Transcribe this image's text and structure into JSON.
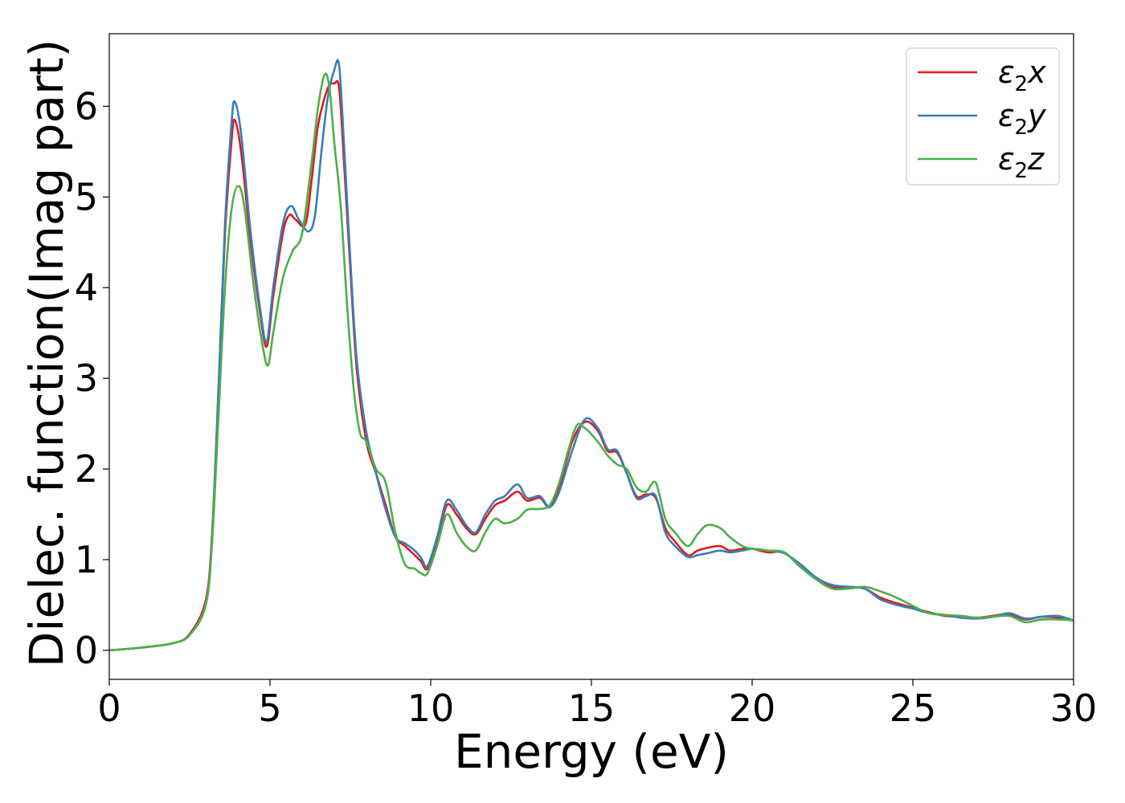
{
  "chart_data": {
    "type": "line",
    "title": "",
    "xlabel": "Energy (eV)",
    "ylabel": "Dielec. function(Imag part)",
    "xlim": [
      0,
      30
    ],
    "ylim": [
      -0.32,
      6.8
    ],
    "xticks": [
      0,
      5,
      10,
      15,
      20,
      25,
      30
    ],
    "yticks": [
      0,
      1,
      2,
      3,
      4,
      5,
      6
    ],
    "grid": false,
    "legend_position": "top-right",
    "series": [
      {
        "name": "ε2x",
        "legend": {
          "base": "ε",
          "sub": "2",
          "suffix": "x"
        },
        "color": "#e41a1c",
        "x": [
          0,
          1,
          2,
          2.5,
          3,
          3.2,
          3.4,
          3.6,
          3.8,
          3.9,
          4.1,
          4.4,
          4.7,
          4.9,
          5.1,
          5.4,
          5.6,
          5.8,
          6.1,
          6.3,
          6.5,
          6.8,
          7.0,
          7.15,
          7.3,
          7.5,
          7.7,
          8.0,
          8.3,
          8.6,
          8.9,
          9.2,
          9.5,
          9.7,
          9.9,
          10.2,
          10.5,
          10.8,
          11.1,
          11.4,
          11.7,
          12.0,
          12.3,
          12.7,
          13.0,
          13.4,
          13.7,
          14.0,
          14.4,
          14.8,
          15.2,
          15.5,
          15.8,
          16.1,
          16.4,
          16.7,
          17.0,
          17.3,
          17.6,
          18.0,
          18.3,
          18.6,
          19.0,
          19.3,
          19.7,
          20.0,
          20.5,
          21.0,
          21.5,
          22.0,
          22.5,
          23.0,
          23.5,
          24.0,
          24.5,
          25.0,
          25.5,
          26.0,
          26.5,
          27.0,
          27.5,
          28.0,
          28.5,
          29.0,
          29.5,
          30.0
        ],
        "y": [
          0.0,
          0.03,
          0.08,
          0.18,
          0.55,
          1.3,
          2.9,
          4.6,
          5.6,
          5.85,
          5.5,
          4.5,
          3.7,
          3.35,
          3.9,
          4.6,
          4.8,
          4.75,
          4.7,
          5.2,
          5.8,
          6.2,
          6.25,
          6.2,
          5.4,
          4.2,
          3.1,
          2.3,
          1.95,
          1.6,
          1.25,
          1.15,
          1.05,
          0.98,
          0.9,
          1.2,
          1.6,
          1.5,
          1.35,
          1.28,
          1.45,
          1.6,
          1.65,
          1.75,
          1.65,
          1.68,
          1.58,
          1.8,
          2.3,
          2.52,
          2.42,
          2.2,
          2.18,
          1.95,
          1.7,
          1.72,
          1.68,
          1.35,
          1.2,
          1.05,
          1.1,
          1.13,
          1.15,
          1.1,
          1.12,
          1.12,
          1.08,
          1.08,
          0.92,
          0.8,
          0.7,
          0.7,
          0.68,
          0.58,
          0.52,
          0.47,
          0.42,
          0.38,
          0.37,
          0.36,
          0.38,
          0.4,
          0.34,
          0.37,
          0.36,
          0.33
        ]
      },
      {
        "name": "ε2y",
        "legend": {
          "base": "ε",
          "sub": "2",
          "suffix": "y"
        },
        "color": "#377eb8",
        "x": [
          0,
          1,
          2,
          2.5,
          3,
          3.2,
          3.4,
          3.6,
          3.8,
          3.9,
          4.1,
          4.4,
          4.7,
          4.9,
          5.1,
          5.4,
          5.65,
          5.9,
          6.2,
          6.4,
          6.6,
          6.8,
          7.0,
          7.15,
          7.3,
          7.5,
          7.7,
          8.0,
          8.3,
          8.6,
          8.9,
          9.2,
          9.5,
          9.7,
          9.9,
          10.2,
          10.5,
          10.8,
          11.1,
          11.4,
          11.7,
          12.0,
          12.3,
          12.7,
          13.0,
          13.4,
          13.7,
          14.0,
          14.4,
          14.8,
          15.2,
          15.5,
          15.8,
          16.1,
          16.4,
          16.7,
          17.0,
          17.3,
          17.6,
          18.0,
          18.3,
          18.6,
          19.0,
          19.3,
          19.7,
          20.0,
          20.5,
          21.0,
          21.5,
          22.0,
          22.5,
          23.0,
          23.5,
          24.0,
          24.5,
          25.0,
          25.5,
          26.0,
          26.5,
          27.0,
          27.5,
          28.0,
          28.5,
          29.0,
          29.5,
          30.0
        ],
        "y": [
          0.0,
          0.03,
          0.08,
          0.17,
          0.5,
          1.25,
          2.9,
          4.7,
          5.8,
          6.05,
          5.7,
          4.6,
          3.75,
          3.4,
          4.0,
          4.7,
          4.9,
          4.75,
          4.62,
          4.8,
          5.5,
          6.1,
          6.4,
          6.45,
          5.6,
          4.3,
          3.2,
          2.4,
          1.95,
          1.55,
          1.25,
          1.18,
          1.1,
          1.02,
          0.93,
          1.25,
          1.65,
          1.55,
          1.38,
          1.3,
          1.5,
          1.65,
          1.7,
          1.83,
          1.68,
          1.7,
          1.58,
          1.75,
          2.2,
          2.55,
          2.45,
          2.22,
          2.2,
          1.95,
          1.68,
          1.7,
          1.7,
          1.3,
          1.15,
          1.03,
          1.05,
          1.07,
          1.1,
          1.08,
          1.1,
          1.12,
          1.1,
          1.07,
          0.95,
          0.8,
          0.72,
          0.7,
          0.68,
          0.56,
          0.5,
          0.46,
          0.41,
          0.39,
          0.36,
          0.35,
          0.37,
          0.41,
          0.35,
          0.37,
          0.38,
          0.33
        ]
      },
      {
        "name": "ε2z",
        "legend": {
          "base": "ε",
          "sub": "2",
          "suffix": "z"
        },
        "color": "#4daf4a",
        "x": [
          0,
          1,
          2,
          2.5,
          3,
          3.2,
          3.4,
          3.6,
          3.8,
          4.0,
          4.2,
          4.5,
          4.8,
          4.95,
          5.1,
          5.4,
          5.7,
          6.0,
          6.3,
          6.5,
          6.7,
          6.85,
          7.0,
          7.2,
          7.4,
          7.6,
          7.8,
          8.0,
          8.3,
          8.6,
          8.9,
          9.2,
          9.5,
          9.7,
          9.9,
          10.2,
          10.5,
          10.8,
          11.1,
          11.4,
          11.7,
          12.0,
          12.3,
          12.7,
          13.0,
          13.4,
          13.7,
          14.0,
          14.5,
          14.8,
          15.2,
          15.5,
          15.8,
          16.1,
          16.4,
          16.7,
          17.0,
          17.3,
          17.6,
          18.0,
          18.3,
          18.6,
          19.0,
          19.3,
          19.7,
          20.0,
          20.5,
          21.0,
          21.5,
          22.0,
          22.5,
          23.0,
          23.5,
          24.0,
          24.5,
          25.0,
          25.5,
          26.0,
          26.5,
          27.0,
          27.5,
          28.0,
          28.5,
          29.0,
          29.5,
          30.0
        ],
        "y": [
          0.0,
          0.03,
          0.08,
          0.17,
          0.5,
          1.2,
          2.6,
          4.0,
          4.85,
          5.12,
          4.9,
          4.0,
          3.3,
          3.15,
          3.5,
          4.1,
          4.4,
          4.6,
          5.4,
          6.0,
          6.35,
          6.2,
          5.6,
          4.9,
          3.8,
          2.9,
          2.4,
          2.3,
          2.0,
          1.85,
          1.3,
          0.95,
          0.9,
          0.85,
          0.85,
          1.15,
          1.5,
          1.3,
          1.15,
          1.1,
          1.3,
          1.45,
          1.4,
          1.45,
          1.55,
          1.56,
          1.6,
          1.85,
          2.45,
          2.45,
          2.3,
          2.15,
          2.05,
          2.0,
          1.8,
          1.75,
          1.85,
          1.45,
          1.3,
          1.15,
          1.28,
          1.38,
          1.35,
          1.25,
          1.15,
          1.12,
          1.1,
          1.08,
          0.92,
          0.78,
          0.68,
          0.68,
          0.7,
          0.65,
          0.58,
          0.49,
          0.41,
          0.39,
          0.38,
          0.36,
          0.37,
          0.38,
          0.31,
          0.34,
          0.34,
          0.33
        ]
      }
    ]
  }
}
